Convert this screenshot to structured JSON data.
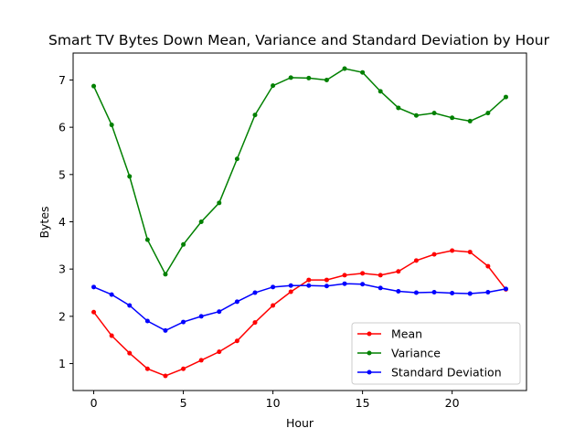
{
  "chart_data": {
    "type": "line",
    "title": "Smart TV Bytes Down Mean, Variance and Standard Deviation by Hour",
    "xlabel": "Hour",
    "ylabel": "Bytes",
    "xlim": [
      -1.15,
      24.15
    ],
    "ylim": [
      0.43,
      7.57
    ],
    "xticks": [
      0,
      5,
      10,
      15,
      20
    ],
    "yticks": [
      1,
      2,
      3,
      4,
      5,
      6,
      7
    ],
    "grid": false,
    "legend_position": "lower-right",
    "x": [
      0,
      1,
      2,
      3,
      4,
      5,
      6,
      7,
      8,
      9,
      10,
      11,
      12,
      13,
      14,
      15,
      16,
      17,
      18,
      19,
      20,
      21,
      22,
      23
    ],
    "series": [
      {
        "name": "Mean",
        "color": "#ff0000",
        "marker": "dot",
        "values": [
          2.09,
          1.59,
          1.22,
          0.89,
          0.74,
          0.89,
          1.07,
          1.25,
          1.48,
          1.87,
          2.23,
          2.52,
          2.77,
          2.77,
          2.87,
          2.91,
          2.87,
          2.95,
          3.18,
          3.31,
          3.39,
          3.36,
          3.06,
          2.57
        ]
      },
      {
        "name": "Variance",
        "color": "#008000",
        "marker": "dot",
        "values": [
          6.87,
          6.05,
          4.96,
          3.62,
          2.89,
          3.52,
          4.0,
          4.4,
          5.33,
          6.26,
          6.88,
          7.05,
          7.04,
          7.0,
          7.24,
          7.16,
          6.76,
          6.41,
          6.25,
          6.3,
          6.2,
          6.13,
          6.3,
          6.64
        ]
      },
      {
        "name": "Standard Deviation",
        "color": "#0000ff",
        "marker": "dot",
        "values": [
          2.62,
          2.46,
          2.23,
          1.9,
          1.7,
          1.88,
          2.0,
          2.1,
          2.31,
          2.5,
          2.62,
          2.65,
          2.65,
          2.64,
          2.69,
          2.68,
          2.6,
          2.53,
          2.5,
          2.51,
          2.49,
          2.48,
          2.51,
          2.58
        ]
      }
    ]
  }
}
